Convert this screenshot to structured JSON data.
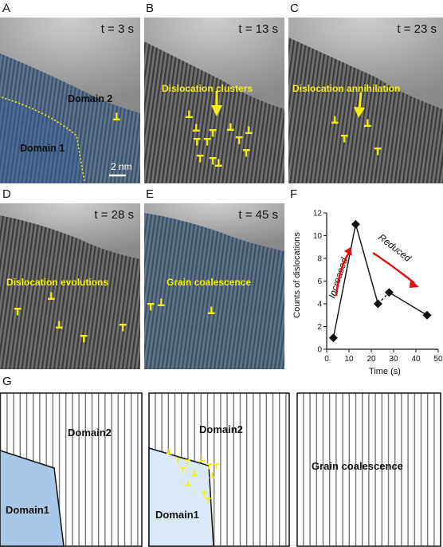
{
  "panels": {
    "a": {
      "letter": "A",
      "time": "t = 3 s",
      "domain2": "Domain 2",
      "domain1": "Domain 1",
      "scale": "2 nm"
    },
    "b": {
      "letter": "B",
      "time": "t = 13 s",
      "caption": "Dislocation clusters"
    },
    "c": {
      "letter": "C",
      "time": "t = 23 s",
      "caption": "Dislocation annihilation"
    },
    "d": {
      "letter": "D",
      "time": "t = 28 s",
      "caption": "Dislocation evolutions"
    },
    "e": {
      "letter": "E",
      "time": "t = 45 s",
      "caption": "Grain coalescence"
    },
    "f": {
      "letter": "F"
    },
    "g": {
      "letter": "G",
      "left_domain2": "Domain2",
      "left_domain1": "Domain1",
      "mid_domain2": "Domain2",
      "mid_domain1": "Domain1",
      "right_caption": "Grain coalescence"
    }
  },
  "dislocation_glyph": "┳",
  "colors": {
    "highlight": "#f4ef10",
    "arrow": "#e01010",
    "domain_blue": "#3f7fc8",
    "domain_light": "#c8dcf1"
  },
  "chart_data": {
    "type": "line",
    "title": "",
    "xlabel": "Time (s)",
    "ylabel": "Counts of dislocations",
    "x": [
      3,
      13,
      23,
      28,
      45
    ],
    "values": [
      1,
      11,
      4,
      5,
      3
    ],
    "xlim": [
      0,
      50
    ],
    "ylim": [
      0,
      12
    ],
    "xticks": [
      "0",
      "10",
      "20",
      "30",
      "40",
      "50"
    ],
    "yticks": [
      "0",
      "2",
      "4",
      "6",
      "8",
      "10",
      "12"
    ],
    "grid": false,
    "annotations": [
      "Increased",
      "Reduced"
    ]
  }
}
